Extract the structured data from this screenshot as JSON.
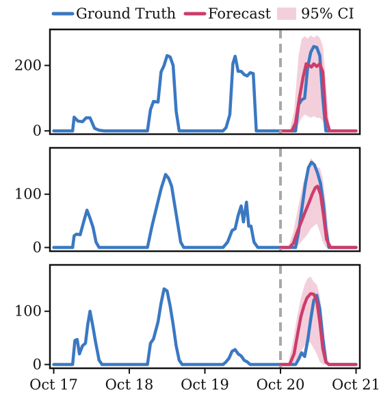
{
  "chart_data": {
    "type": "line",
    "legend": {
      "placement": "top",
      "entries": [
        {
          "key": "truth",
          "label": "Ground Truth",
          "color": "#3a78c2",
          "style": "line"
        },
        {
          "key": "forecast",
          "label": "Forecast",
          "color": "#cc3d6a",
          "style": "line"
        },
        {
          "key": "ci",
          "label": "95% CI",
          "color": "#f3cfdc",
          "style": "patch"
        }
      ]
    },
    "x_tick_labels": [
      "Oct 17",
      "Oct 18",
      "Oct 19",
      "Oct 20",
      "Oct 21"
    ],
    "x_range_days": [
      -0.05,
      4.05
    ],
    "forecast_start_day": 3.0,
    "colors": {
      "truth": "#3a78c2",
      "forecast": "#cc3d6a",
      "ci": "#f3cfdc",
      "divider": "#a8a8a8"
    },
    "panels": [
      {
        "ylim": [
          -10,
          310
        ],
        "yticks": [
          0,
          200
        ],
        "ground_truth": [
          [
            0,
            0
          ],
          [
            0.25,
            0
          ],
          [
            0.27,
            42
          ],
          [
            0.32,
            30
          ],
          [
            0.38,
            28
          ],
          [
            0.43,
            40
          ],
          [
            0.48,
            40
          ],
          [
            0.54,
            8
          ],
          [
            0.6,
            2
          ],
          [
            0.67,
            0
          ],
          [
            1.24,
            0
          ],
          [
            1.28,
            65
          ],
          [
            1.32,
            90
          ],
          [
            1.38,
            88
          ],
          [
            1.42,
            180
          ],
          [
            1.46,
            200
          ],
          [
            1.5,
            230
          ],
          [
            1.54,
            226
          ],
          [
            1.58,
            200
          ],
          [
            1.62,
            60
          ],
          [
            1.66,
            0
          ],
          [
            2.24,
            0
          ],
          [
            2.28,
            10
          ],
          [
            2.33,
            50
          ],
          [
            2.37,
            205
          ],
          [
            2.4,
            228
          ],
          [
            2.44,
            182
          ],
          [
            2.48,
            182
          ],
          [
            2.52,
            172
          ],
          [
            2.56,
            168
          ],
          [
            2.6,
            178
          ],
          [
            2.64,
            175
          ],
          [
            2.68,
            0
          ],
          [
            3.0,
            0
          ],
          [
            3.2,
            0
          ],
          [
            3.24,
            80
          ],
          [
            3.28,
            95
          ],
          [
            3.32,
            100
          ],
          [
            3.36,
            195
          ],
          [
            3.4,
            240
          ],
          [
            3.44,
            258
          ],
          [
            3.48,
            255
          ],
          [
            3.52,
            230
          ],
          [
            3.56,
            100
          ],
          [
            3.6,
            0
          ],
          [
            4.0,
            0
          ]
        ],
        "forecast": [
          [
            3.0,
            0
          ],
          [
            3.15,
            0
          ],
          [
            3.2,
            25
          ],
          [
            3.25,
            100
          ],
          [
            3.3,
            165
          ],
          [
            3.34,
            205
          ],
          [
            3.38,
            200
          ],
          [
            3.41,
            195
          ],
          [
            3.44,
            205
          ],
          [
            3.48,
            197
          ],
          [
            3.52,
            205
          ],
          [
            3.56,
            180
          ],
          [
            3.6,
            40
          ],
          [
            3.65,
            0
          ],
          [
            4.0,
            0
          ]
        ],
        "ci_upper": [
          [
            3.0,
            0
          ],
          [
            3.12,
            0
          ],
          [
            3.18,
            60
          ],
          [
            3.24,
            230
          ],
          [
            3.28,
            280
          ],
          [
            3.32,
            290
          ],
          [
            3.36,
            282
          ],
          [
            3.4,
            292
          ],
          [
            3.44,
            285
          ],
          [
            3.48,
            292
          ],
          [
            3.52,
            285
          ],
          [
            3.56,
            260
          ],
          [
            3.6,
            150
          ],
          [
            3.65,
            0
          ],
          [
            4.0,
            0
          ]
        ],
        "ci_lower": [
          [
            3.0,
            0
          ],
          [
            3.12,
            0
          ],
          [
            3.18,
            0
          ],
          [
            3.24,
            20
          ],
          [
            3.28,
            40
          ],
          [
            3.32,
            50
          ],
          [
            3.36,
            45
          ],
          [
            3.4,
            40
          ],
          [
            3.44,
            45
          ],
          [
            3.48,
            40
          ],
          [
            3.52,
            40
          ],
          [
            3.56,
            30
          ],
          [
            3.6,
            0
          ],
          [
            3.65,
            0
          ],
          [
            4.0,
            0
          ]
        ]
      },
      {
        "ylim": [
          -7,
          187
        ],
        "yticks": [
          0,
          100
        ],
        "ground_truth": [
          [
            0,
            0
          ],
          [
            0.25,
            0
          ],
          [
            0.27,
            22
          ],
          [
            0.3,
            25
          ],
          [
            0.35,
            24
          ],
          [
            0.4,
            50
          ],
          [
            0.44,
            70
          ],
          [
            0.48,
            55
          ],
          [
            0.52,
            38
          ],
          [
            0.56,
            10
          ],
          [
            0.6,
            0
          ],
          [
            1.24,
            0
          ],
          [
            1.3,
            40
          ],
          [
            1.36,
            75
          ],
          [
            1.42,
            110
          ],
          [
            1.48,
            137
          ],
          [
            1.52,
            130
          ],
          [
            1.56,
            115
          ],
          [
            1.6,
            80
          ],
          [
            1.64,
            45
          ],
          [
            1.68,
            10
          ],
          [
            1.72,
            0
          ],
          [
            2.24,
            0
          ],
          [
            2.3,
            10
          ],
          [
            2.36,
            32
          ],
          [
            2.4,
            35
          ],
          [
            2.44,
            60
          ],
          [
            2.48,
            78
          ],
          [
            2.51,
            48
          ],
          [
            2.55,
            85
          ],
          [
            2.58,
            40
          ],
          [
            2.61,
            40
          ],
          [
            2.65,
            10
          ],
          [
            2.7,
            0
          ],
          [
            3.0,
            0
          ],
          [
            3.2,
            0
          ],
          [
            3.24,
            30
          ],
          [
            3.28,
            70
          ],
          [
            3.33,
            120
          ],
          [
            3.37,
            150
          ],
          [
            3.41,
            160
          ],
          [
            3.45,
            155
          ],
          [
            3.49,
            140
          ],
          [
            3.53,
            120
          ],
          [
            3.57,
            80
          ],
          [
            3.6,
            35
          ],
          [
            3.64,
            0
          ],
          [
            4.0,
            0
          ]
        ],
        "forecast": [
          [
            3.0,
            0
          ],
          [
            3.12,
            0
          ],
          [
            3.17,
            8
          ],
          [
            3.22,
            28
          ],
          [
            3.28,
            50
          ],
          [
            3.33,
            68
          ],
          [
            3.38,
            85
          ],
          [
            3.42,
            100
          ],
          [
            3.46,
            112
          ],
          [
            3.49,
            115
          ],
          [
            3.53,
            100
          ],
          [
            3.57,
            60
          ],
          [
            3.61,
            15
          ],
          [
            3.66,
            0
          ],
          [
            4.0,
            0
          ]
        ],
        "ci_upper": [
          [
            3.0,
            0
          ],
          [
            3.1,
            0
          ],
          [
            3.17,
            30
          ],
          [
            3.24,
            80
          ],
          [
            3.3,
            120
          ],
          [
            3.36,
            150
          ],
          [
            3.4,
            168
          ],
          [
            3.44,
            162
          ],
          [
            3.48,
            150
          ],
          [
            3.52,
            150
          ],
          [
            3.56,
            130
          ],
          [
            3.6,
            80
          ],
          [
            3.65,
            10
          ],
          [
            3.7,
            0
          ],
          [
            4.0,
            0
          ]
        ],
        "ci_lower": [
          [
            3.0,
            0
          ],
          [
            3.1,
            0
          ],
          [
            3.17,
            0
          ],
          [
            3.24,
            5
          ],
          [
            3.3,
            15
          ],
          [
            3.36,
            25
          ],
          [
            3.4,
            35
          ],
          [
            3.44,
            40
          ],
          [
            3.48,
            45
          ],
          [
            3.52,
            30
          ],
          [
            3.56,
            10
          ],
          [
            3.6,
            0
          ],
          [
            3.65,
            0
          ],
          [
            3.7,
            0
          ],
          [
            4.0,
            0
          ]
        ]
      },
      {
        "ylim": [
          -7,
          187
        ],
        "yticks": [
          0,
          100
        ],
        "ground_truth": [
          [
            0,
            0
          ],
          [
            0.25,
            0
          ],
          [
            0.28,
            45
          ],
          [
            0.31,
            47
          ],
          [
            0.34,
            20
          ],
          [
            0.38,
            35
          ],
          [
            0.42,
            40
          ],
          [
            0.45,
            75
          ],
          [
            0.48,
            100
          ],
          [
            0.52,
            70
          ],
          [
            0.55,
            45
          ],
          [
            0.6,
            8
          ],
          [
            0.64,
            0
          ],
          [
            1.24,
            0
          ],
          [
            1.28,
            40
          ],
          [
            1.32,
            48
          ],
          [
            1.38,
            80
          ],
          [
            1.42,
            115
          ],
          [
            1.46,
            142
          ],
          [
            1.5,
            138
          ],
          [
            1.54,
            110
          ],
          [
            1.58,
            75
          ],
          [
            1.62,
            35
          ],
          [
            1.66,
            8
          ],
          [
            1.7,
            0
          ],
          [
            2.24,
            0
          ],
          [
            2.28,
            5
          ],
          [
            2.32,
            12
          ],
          [
            2.36,
            25
          ],
          [
            2.4,
            28
          ],
          [
            2.44,
            20
          ],
          [
            2.48,
            16
          ],
          [
            2.52,
            8
          ],
          [
            2.56,
            5
          ],
          [
            2.6,
            0
          ],
          [
            2.64,
            0
          ],
          [
            3.0,
            0
          ],
          [
            3.2,
            0
          ],
          [
            3.24,
            10
          ],
          [
            3.28,
            22
          ],
          [
            3.32,
            15
          ],
          [
            3.36,
            45
          ],
          [
            3.4,
            85
          ],
          [
            3.44,
            120
          ],
          [
            3.48,
            130
          ],
          [
            3.52,
            105
          ],
          [
            3.56,
            50
          ],
          [
            3.6,
            5
          ],
          [
            3.64,
            0
          ],
          [
            4.0,
            0
          ]
        ],
        "forecast": [
          [
            3.0,
            0
          ],
          [
            3.12,
            0
          ],
          [
            3.18,
            20
          ],
          [
            3.23,
            60
          ],
          [
            3.27,
            90
          ],
          [
            3.31,
            110
          ],
          [
            3.35,
            125
          ],
          [
            3.4,
            133
          ],
          [
            3.44,
            132
          ],
          [
            3.48,
            120
          ],
          [
            3.52,
            80
          ],
          [
            3.56,
            30
          ],
          [
            3.6,
            5
          ],
          [
            3.64,
            0
          ],
          [
            4.0,
            0
          ]
        ],
        "ci_upper": [
          [
            3.0,
            0
          ],
          [
            3.1,
            0
          ],
          [
            3.16,
            40
          ],
          [
            3.22,
            90
          ],
          [
            3.27,
            125
          ],
          [
            3.32,
            150
          ],
          [
            3.36,
            162
          ],
          [
            3.4,
            165
          ],
          [
            3.44,
            155
          ],
          [
            3.48,
            150
          ],
          [
            3.52,
            130
          ],
          [
            3.56,
            80
          ],
          [
            3.6,
            30
          ],
          [
            3.64,
            0
          ],
          [
            4.0,
            0
          ]
        ],
        "ci_lower": [
          [
            3.0,
            0
          ],
          [
            3.1,
            0
          ],
          [
            3.16,
            0
          ],
          [
            3.22,
            10
          ],
          [
            3.27,
            25
          ],
          [
            3.32,
            35
          ],
          [
            3.36,
            45
          ],
          [
            3.4,
            40
          ],
          [
            3.44,
            30
          ],
          [
            3.48,
            20
          ],
          [
            3.52,
            5
          ],
          [
            3.56,
            0
          ],
          [
            3.6,
            0
          ],
          [
            3.64,
            0
          ],
          [
            4.0,
            0
          ]
        ]
      }
    ]
  }
}
